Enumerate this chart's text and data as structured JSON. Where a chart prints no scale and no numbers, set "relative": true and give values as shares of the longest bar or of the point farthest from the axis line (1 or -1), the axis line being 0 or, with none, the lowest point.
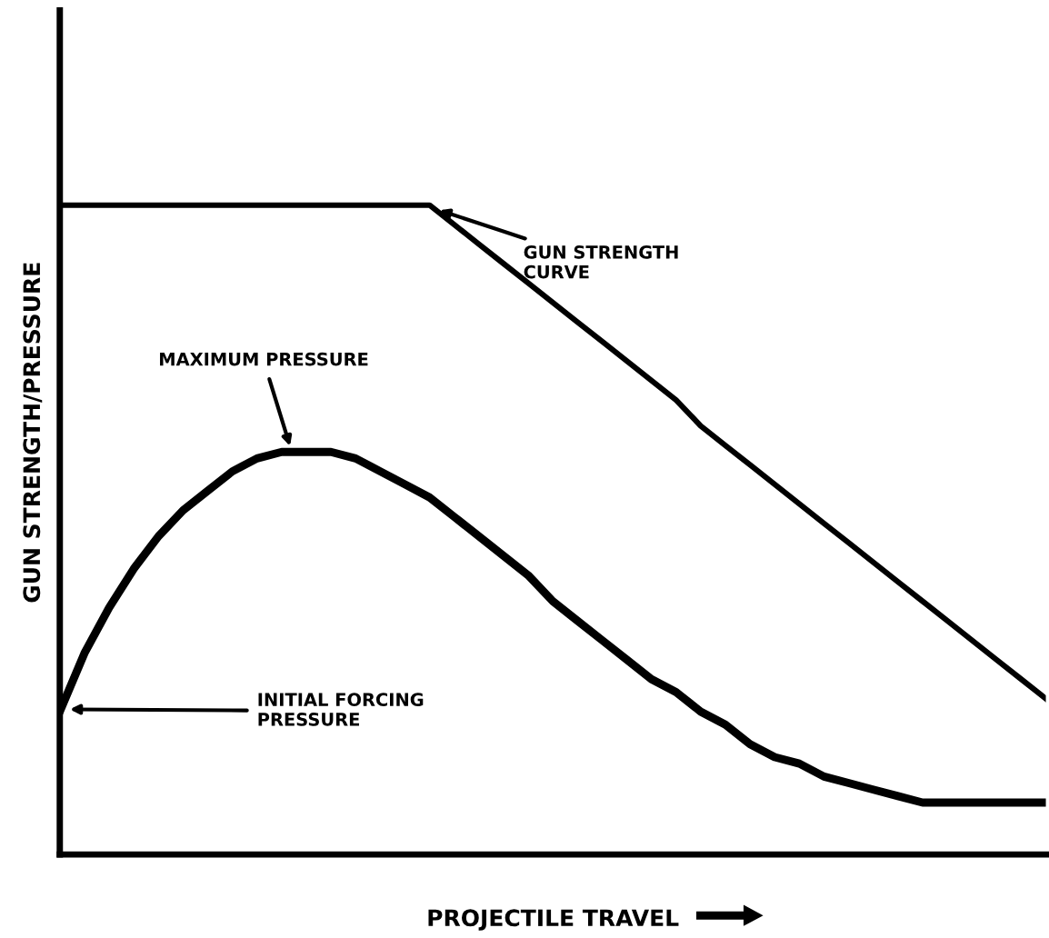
{
  "chart_data": {
    "type": "line",
    "relative": true,
    "xlabel": "PROJECTILE TRAVEL",
    "ylabel": "GUN STRENGTH/PRESSURE",
    "categories": [
      null,
      null,
      null,
      null,
      null,
      null,
      null,
      null,
      null,
      null,
      null,
      null,
      null,
      null,
      null,
      null,
      null,
      null,
      null,
      null,
      null,
      null,
      null,
      null,
      null,
      null,
      null,
      null,
      null,
      null,
      null,
      null,
      null,
      null,
      null,
      null,
      null,
      null,
      null,
      null,
      null
    ],
    "series": [
      {
        "color": "#000000",
        "values": [
          1,
          1,
          1,
          1,
          1,
          1,
          1,
          1,
          1,
          1,
          1,
          1,
          1,
          1,
          1,
          1,
          0.97,
          0.94,
          0.91,
          0.88,
          0.85,
          0.82,
          0.79,
          0.76,
          0.73,
          0.7,
          0.66,
          0.63,
          0.6,
          0.57,
          0.54,
          0.51,
          0.48,
          0.45,
          0.42,
          0.39,
          0.36,
          0.33,
          0.3,
          0.27,
          0.24
        ]
      },
      {
        "color": "#000000",
        "values": [
          0.22,
          0.31,
          0.38,
          0.44,
          0.49,
          0.53,
          0.56,
          0.59,
          0.61,
          0.62,
          0.62,
          0.62,
          0.61,
          0.59,
          0.57,
          0.55,
          0.52,
          0.49,
          0.46,
          0.43,
          0.39,
          0.36,
          0.33,
          0.3,
          0.27,
          0.25,
          0.22,
          0.2,
          0.17,
          0.15,
          0.14,
          0.12,
          0.11,
          0.1,
          0.09,
          0.08,
          0.08,
          0.08,
          0.08,
          0.08,
          0.08
        ]
      }
    ],
    "annotations": [
      "GUN STRENGTH\nCURVE",
      "MAXIMUM PRESSURE",
      "INITIAL FORCING\nPRESSURE"
    ],
    "grid": false,
    "legend": false,
    "line_style": "solid",
    "marker": "none"
  }
}
